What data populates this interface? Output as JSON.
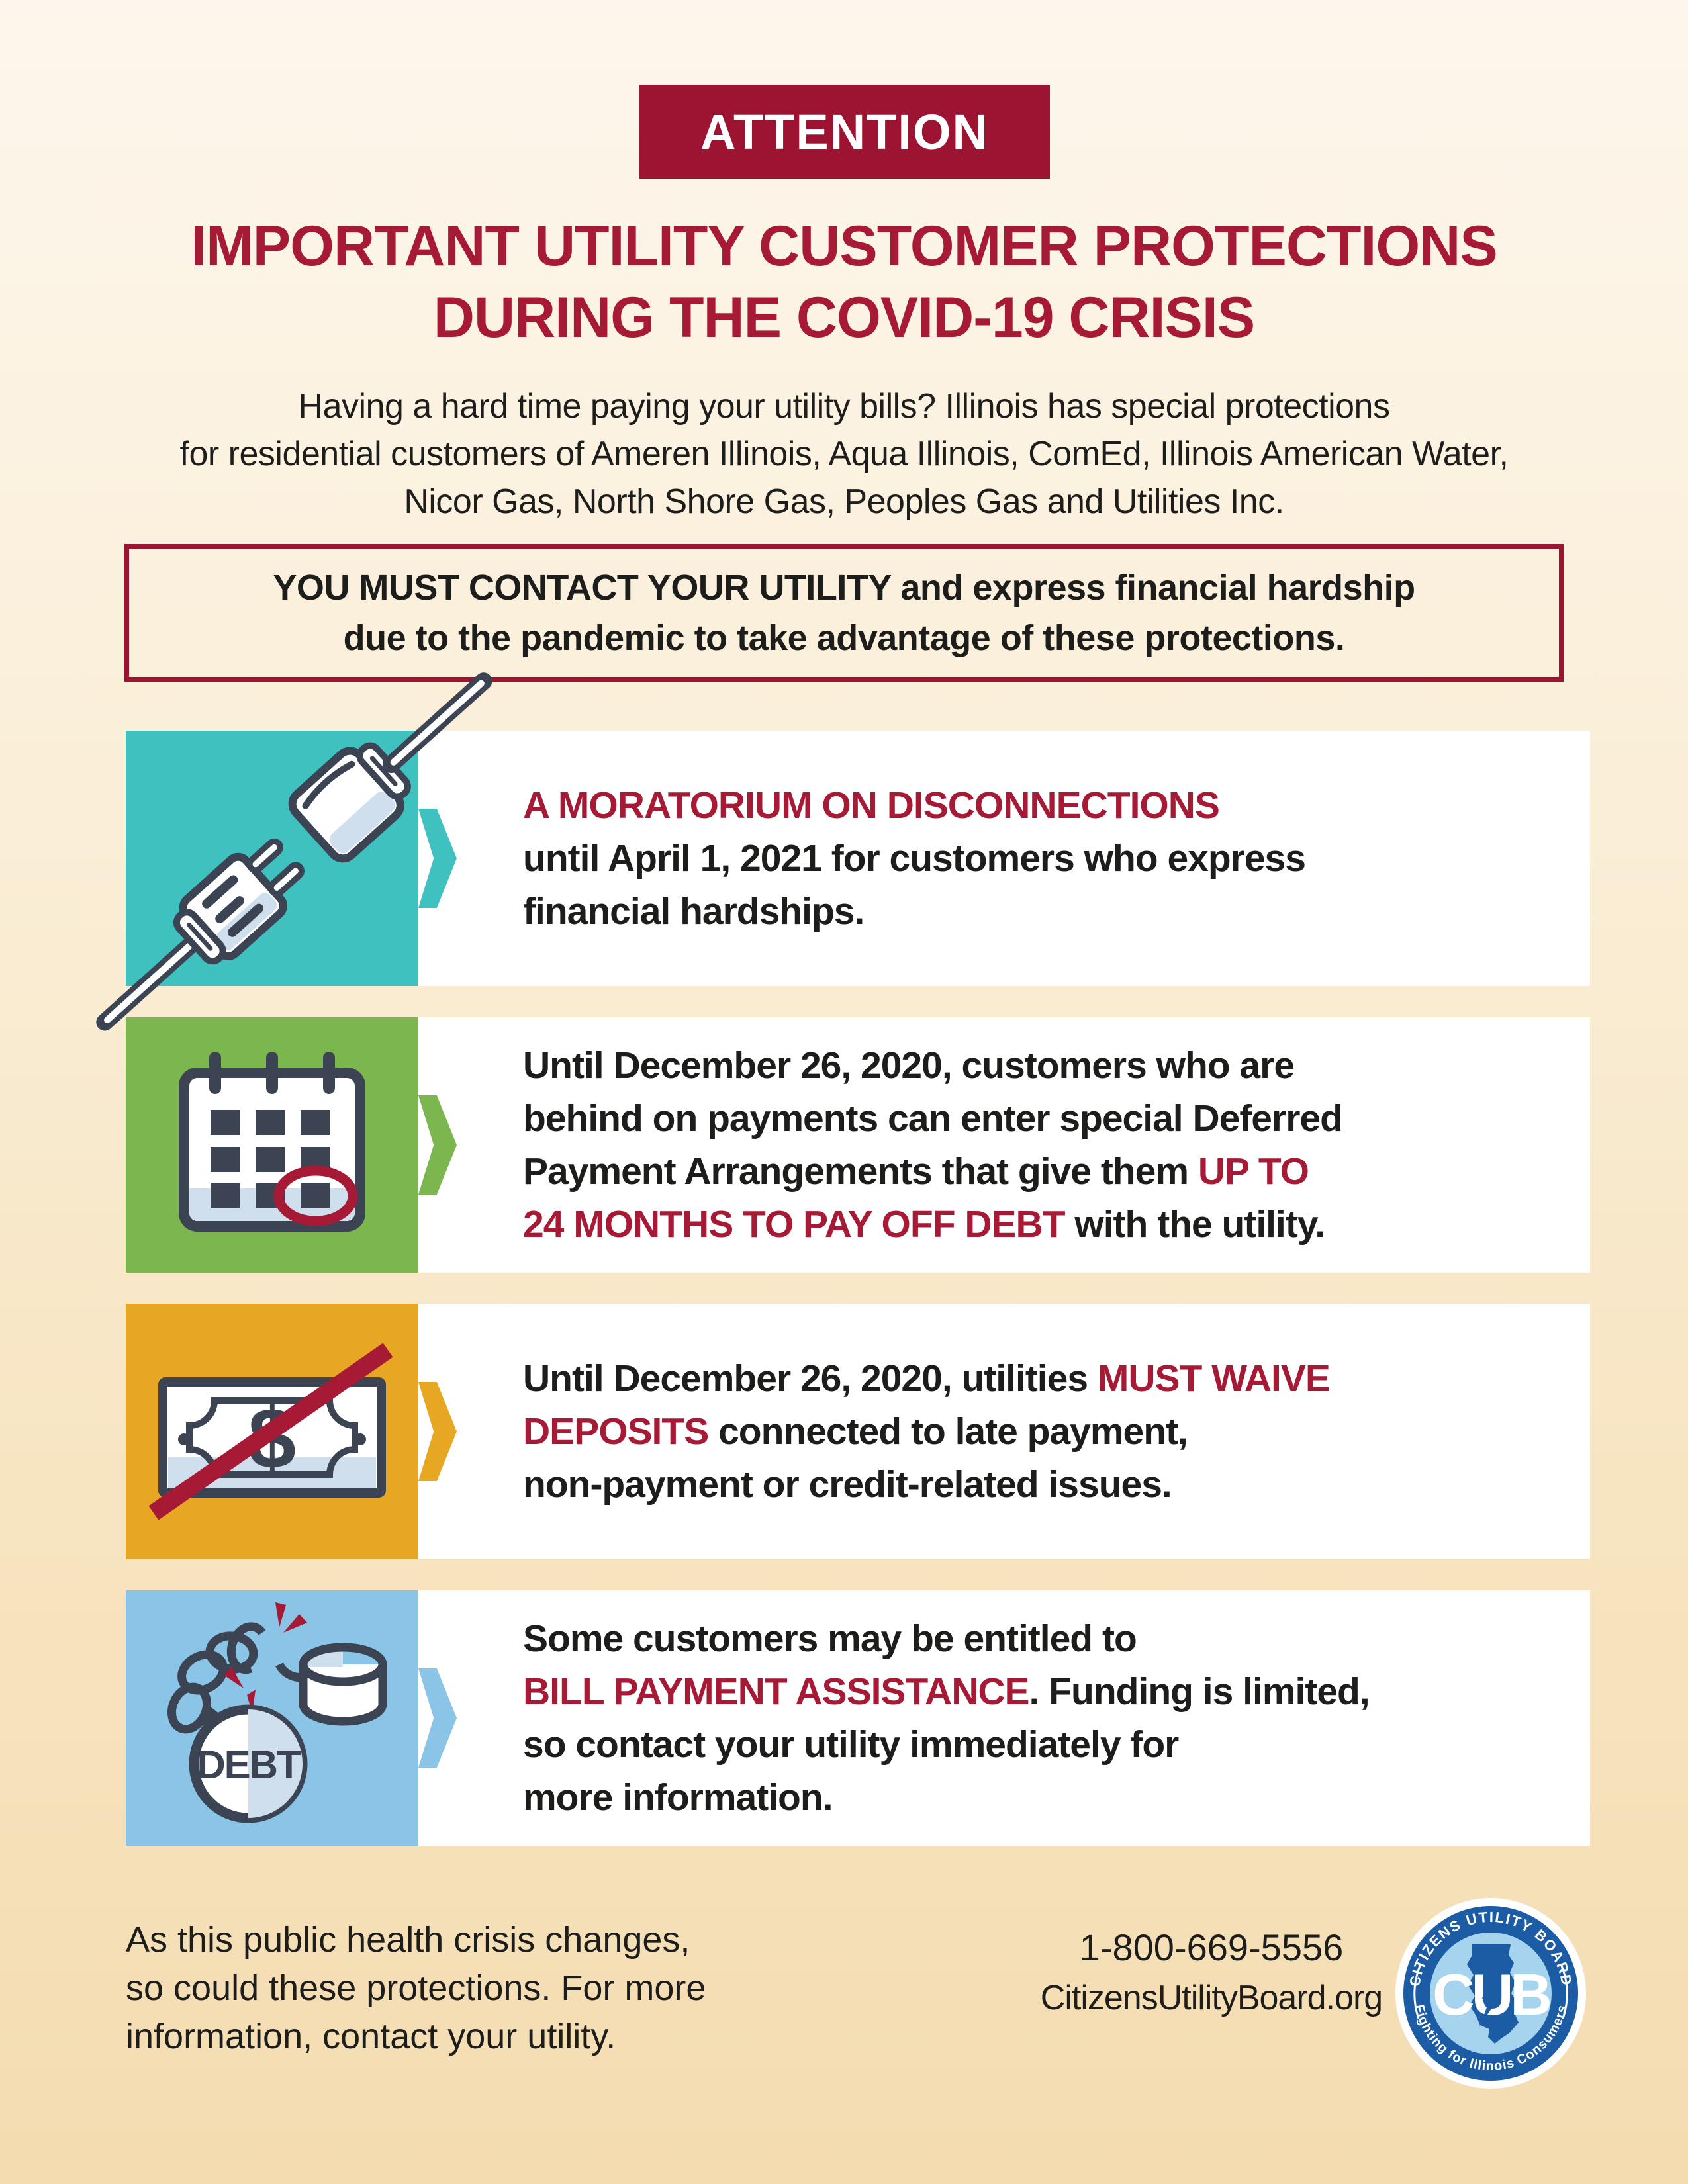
{
  "colors": {
    "banner_red": "#9d1433",
    "accent_red": "#a61a35",
    "text_black": "#1d1d1b",
    "background_top": "#fdf6ec",
    "background_bottom": "#f4dcb0",
    "row_teal": "#3fc1bf",
    "row_green": "#7bb74e",
    "row_orange": "#e7a722",
    "row_blue": "#8ac4e6",
    "icon_stroke_navy": "#3c4353",
    "icon_shade_blue": "#cfdfee",
    "logo_ring_blue": "#1c5ca5",
    "logo_inner_blue": "#a6d3ee"
  },
  "attention": {
    "label": "ATTENTION"
  },
  "title": {
    "lines": [
      "IMPORTANT UTILITY CUSTOMER PROTECTIONS",
      "DURING THE COVID-19 CRISIS"
    ]
  },
  "intro": {
    "lines": [
      "Having a hard time paying your utility bills? Illinois has special protections",
      "for residential customers of Ameren Illinois, Aqua Illinois, ComEd, Illinois American Water,",
      "Nicor Gas, North Shore Gas, Peoples Gas and Utilities Inc."
    ]
  },
  "notice": {
    "lines": [
      [
        {
          "t": "YOU MUST CONTACT YOUR UTILITY ",
          "heavy": true
        },
        {
          "t": "and express financial hardship"
        }
      ],
      [
        {
          "t": "due to the pandemic to take advantage of these protections."
        }
      ]
    ]
  },
  "protections": [
    {
      "icon": "unplugged-power-cord",
      "lines": [
        [
          {
            "t": "A MORATORIUM ON DISCONNECTIONS",
            "red": true
          }
        ],
        [
          {
            "t": "until April 1, 2021 for customers who express"
          }
        ],
        [
          {
            "t": "financial hardships."
          }
        ]
      ]
    },
    {
      "icon": "calendar-circled-date",
      "lines": [
        [
          {
            "t": "Until December 26, 2020, customers who are"
          }
        ],
        [
          {
            "t": "behind on payments can enter special Deferred"
          }
        ],
        [
          {
            "t": "Payment Arrangements that give them "
          },
          {
            "t": "UP TO",
            "red": true
          }
        ],
        [
          {
            "t": "24 MONTHS TO PAY OFF DEBT",
            "red": true
          },
          {
            "t": " with the utility."
          }
        ]
      ]
    },
    {
      "icon": "waived-deposit-money",
      "lines": [
        [
          {
            "t": "Until December 26, 2020, utilities "
          },
          {
            "t": "MUST WAIVE",
            "red": true
          }
        ],
        [
          {
            "t": "DEPOSITS",
            "red": true
          },
          {
            "t": " connected to late payment,"
          }
        ],
        [
          {
            "t": "non-payment or credit-related issues."
          }
        ]
      ]
    },
    {
      "icon": "broken-debt-chain",
      "lines": [
        [
          {
            "t": "Some customers may be entitled to"
          }
        ],
        [
          {
            "t": "BILL PAYMENT ASSISTANCE",
            "red": true
          },
          {
            "t": ". Funding is limited,"
          }
        ],
        [
          {
            "t": "so contact your utility immediately for"
          }
        ],
        [
          {
            "t": "more information."
          }
        ]
      ]
    }
  ],
  "footer": {
    "note_lines": [
      "As this public health crisis changes,",
      "so could these protections. For more",
      "information, contact your utility."
    ],
    "phone": "1-800-669-5556",
    "website": "CitizensUtilityBoard.org"
  },
  "logo": {
    "arc_top": "CITIZENS UTILITY BOARD",
    "arc_bottom": "Fighting for Illinois Consumers",
    "monogram": "CUB",
    "debt_ball_label": "DEBT"
  }
}
